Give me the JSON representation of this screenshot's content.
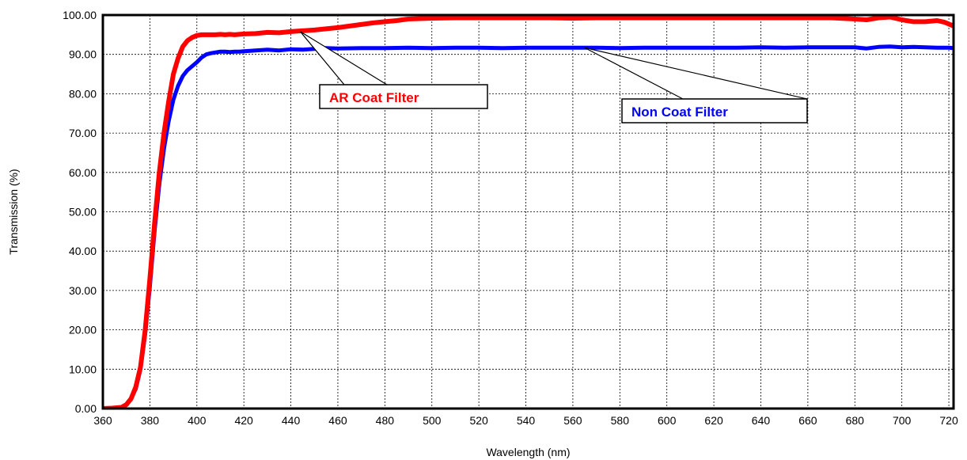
{
  "chart_data": {
    "type": "line",
    "title": "",
    "xlabel": "Wavelength (nm)",
    "ylabel": "Transmission (%)",
    "xlim": [
      360,
      722
    ],
    "ylim": [
      0,
      100
    ],
    "x_ticks": [
      "360",
      "380",
      "400",
      "420",
      "440",
      "460",
      "480",
      "500",
      "520",
      "540",
      "560",
      "580",
      "600",
      "620",
      "640",
      "660",
      "680",
      "700",
      "720"
    ],
    "y_ticks": [
      "0.00",
      "10.00",
      "20.00",
      "30.00",
      "40.00",
      "50.00",
      "60.00",
      "70.00",
      "80.00",
      "90.00",
      "100.00"
    ],
    "grid": true,
    "series": [
      {
        "name": "AR Coat Filter",
        "color": "#ff0000",
        "x": [
          360,
          364,
          368,
          370,
          372,
          374,
          376,
          378,
          380,
          382,
          384,
          386,
          388,
          390,
          392,
          394,
          396,
          398,
          400,
          402,
          404,
          406,
          408,
          410,
          412,
          414,
          416,
          418,
          420,
          425,
          430,
          435,
          440,
          445,
          450,
          455,
          460,
          465,
          470,
          475,
          480,
          485,
          490,
          495,
          500,
          510,
          520,
          530,
          540,
          550,
          560,
          570,
          580,
          590,
          600,
          610,
          620,
          630,
          640,
          650,
          660,
          670,
          680,
          685,
          690,
          695,
          700,
          705,
          710,
          715,
          718,
          722
        ],
        "y": [
          0.0,
          0.1,
          0.3,
          1.0,
          2.5,
          5.5,
          10.5,
          20.0,
          33.0,
          47.0,
          60.0,
          70.0,
          78.0,
          85.0,
          89.0,
          92.0,
          93.5,
          94.3,
          94.8,
          95.0,
          95.0,
          95.0,
          95.0,
          95.1,
          95.0,
          95.1,
          95.0,
          95.1,
          95.2,
          95.3,
          95.6,
          95.5,
          95.8,
          96.0,
          96.2,
          96.5,
          96.8,
          97.2,
          97.6,
          98.0,
          98.3,
          98.6,
          99.0,
          99.1,
          99.2,
          99.3,
          99.3,
          99.3,
          99.3,
          99.3,
          99.2,
          99.3,
          99.3,
          99.3,
          99.3,
          99.3,
          99.3,
          99.3,
          99.3,
          99.3,
          99.3,
          99.3,
          99.0,
          98.8,
          99.3,
          99.5,
          98.8,
          98.3,
          98.3,
          98.6,
          98.2,
          97.2
        ]
      },
      {
        "name": "Non Coat Filter",
        "color": "#0000ff",
        "x": [
          360,
          364,
          368,
          370,
          372,
          374,
          376,
          378,
          380,
          382,
          384,
          386,
          388,
          390,
          392,
          394,
          396,
          398,
          400,
          402,
          404,
          406,
          408,
          410,
          412,
          414,
          416,
          418,
          420,
          425,
          430,
          435,
          440,
          445,
          450,
          455,
          460,
          470,
          480,
          490,
          500,
          510,
          520,
          530,
          540,
          550,
          560,
          570,
          580,
          590,
          600,
          610,
          620,
          630,
          640,
          650,
          660,
          670,
          680,
          685,
          690,
          695,
          700,
          705,
          710,
          715,
          720,
          722
        ],
        "y": [
          0.0,
          0.1,
          0.3,
          1.0,
          2.5,
          5.0,
          10.0,
          19.0,
          31.0,
          45.0,
          57.0,
          66.0,
          73.0,
          78.5,
          82.0,
          84.5,
          86.0,
          87.0,
          88.0,
          89.2,
          90.0,
          90.3,
          90.5,
          90.7,
          90.7,
          90.6,
          90.7,
          90.7,
          90.8,
          91.0,
          91.2,
          91.0,
          91.3,
          91.2,
          91.4,
          91.6,
          91.5,
          91.6,
          91.6,
          91.7,
          91.6,
          91.7,
          91.7,
          91.6,
          91.7,
          91.7,
          91.7,
          91.7,
          91.6,
          91.7,
          91.7,
          91.7,
          91.7,
          91.7,
          91.8,
          91.7,
          91.8,
          91.8,
          91.8,
          91.5,
          91.9,
          92.0,
          91.8,
          91.9,
          91.8,
          91.7,
          91.7,
          91.6
        ]
      }
    ],
    "annotations": [
      {
        "text": "AR Coat Filter",
        "color": "#ff0000",
        "target_x": 444,
        "target_y": 95.8
      },
      {
        "text": "Non Coat Filter",
        "color": "#0000ff",
        "target_x": 565,
        "target_y": 91.7
      }
    ]
  }
}
